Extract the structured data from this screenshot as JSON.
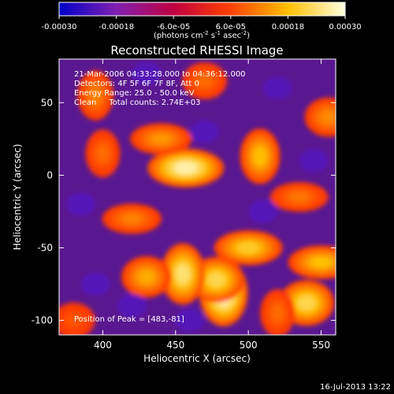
{
  "chart_data": {
    "type": "heatmap",
    "title": "Reconstructed RHESSI Image",
    "xlabel": "Heliocentric X (arcsec)",
    "ylabel": "Heliocentric Y (arcsec)",
    "xlim": [
      370,
      560
    ],
    "ylim": [
      -110,
      80
    ],
    "xticks": [
      400,
      450,
      500,
      550
    ],
    "yticks": [
      -100,
      -50,
      0,
      50
    ],
    "grid": false,
    "colorbar": {
      "range": [
        -0.0003,
        0.0003
      ],
      "ticks": [
        "-0.00030",
        "-0.00018",
        "-6.0e-05",
        "6.0e-05",
        "0.00018",
        "0.00030"
      ],
      "units": {
        "pre1": "(photons cm",
        "sup1": "-2",
        "pre2": " s",
        "sup2": "-1",
        "pre3": " asec",
        "sup3": "-2",
        "post": ")"
      },
      "colors": [
        "#0000c8",
        "#8020b0",
        "#c00040",
        "#ff4000",
        "#ffc000",
        "#ffffe0"
      ]
    },
    "annotations": [
      "21-Mar-2006 04:33:28.000 to 04:36:12.000",
      "Detectors: 4F 5F 6F 7F 8F, Att 0",
      "Energy Range: 25.0 - 50.0 keV",
      "Clean     Total counts: 2.74E+03"
    ],
    "peak_label": "Position of Peak = [483,-81]",
    "peak": [
      483,
      -81
    ],
    "hot_spots": [
      {
        "x": 457,
        "y": 5,
        "v": 0.00027
      },
      {
        "x": 483,
        "y": -81,
        "v": 0.0003
      },
      {
        "x": 478,
        "y": -72,
        "v": 0.00022
      },
      {
        "x": 500,
        "y": -50,
        "v": 0.0002
      },
      {
        "x": 455,
        "y": -68,
        "v": 0.00024
      },
      {
        "x": 540,
        "y": -88,
        "v": 0.00022
      },
      {
        "x": 550,
        "y": -60,
        "v": 0.00018
      },
      {
        "x": 508,
        "y": 13,
        "v": 0.00018
      },
      {
        "x": 430,
        "y": -70,
        "v": 0.00016
      },
      {
        "x": 440,
        "y": 25,
        "v": 0.00014
      },
      {
        "x": 395,
        "y": 55,
        "v": 0.00012
      },
      {
        "x": 555,
        "y": 40,
        "v": 0.00013
      },
      {
        "x": 420,
        "y": -30,
        "v": 0.00012
      },
      {
        "x": 400,
        "y": 15,
        "v": 0.0001
      },
      {
        "x": 470,
        "y": 65,
        "v": 0.0001
      },
      {
        "x": 535,
        "y": -15,
        "v": 0.00011
      },
      {
        "x": 520,
        "y": -95,
        "v": 0.0001
      },
      {
        "x": 380,
        "y": -100,
        "v": 8e-05
      }
    ]
  },
  "footer_timestamp": "16-Jul-2013 13:22"
}
